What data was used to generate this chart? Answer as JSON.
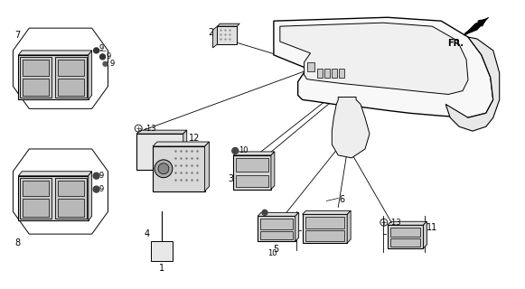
{
  "bg_color": "#ffffff",
  "lc": "#000000",
  "figsize": [
    5.81,
    3.2
  ],
  "dpi": 100,
  "label_fs": 7,
  "small_fs": 6
}
